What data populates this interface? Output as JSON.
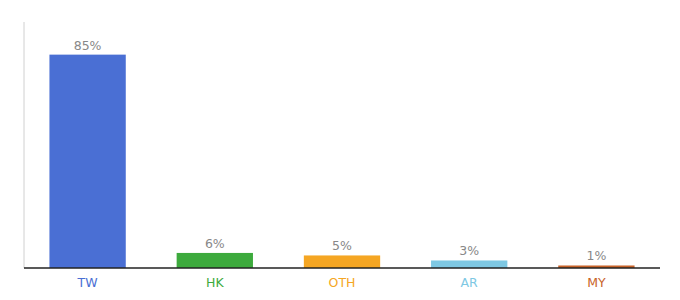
{
  "chart_data": {
    "type": "bar",
    "categories": [
      "TW",
      "HK",
      "OTH",
      "AR",
      "MY"
    ],
    "values": [
      85,
      6,
      5,
      3,
      1
    ],
    "value_labels": [
      "85%",
      "6%",
      "5%",
      "3%",
      "1%"
    ],
    "colors": [
      "#4A6FD4",
      "#3DAA3D",
      "#F5A623",
      "#7EC8E3",
      "#C8632A"
    ],
    "ylim": [
      0,
      98
    ],
    "data_labels": true,
    "tick_labels": "x",
    "grid": false
  }
}
